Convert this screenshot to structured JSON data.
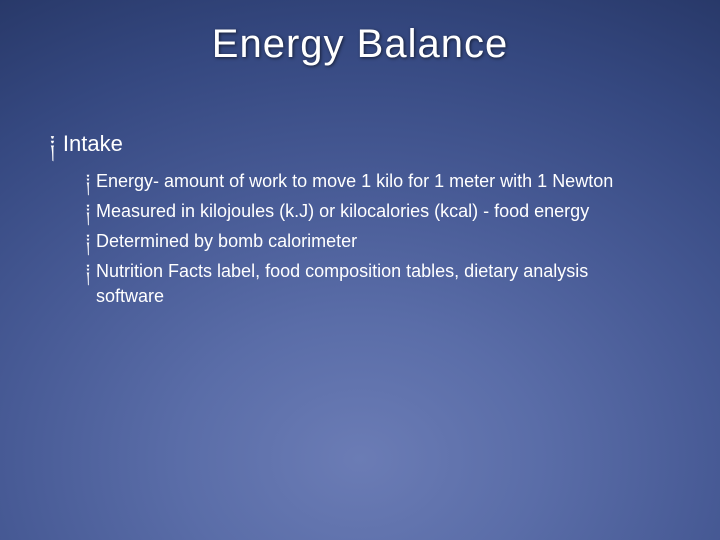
{
  "slide": {
    "title": "Energy Balance",
    "title_color": "#ffffff",
    "title_fontsize": 40,
    "title_fontweight": 300,
    "background_gradient": {
      "type": "radial",
      "center": "50% 85%",
      "stops": [
        {
          "color": "#6b7cb5",
          "at": 0
        },
        {
          "color": "#5a6da8",
          "at": 20
        },
        {
          "color": "#475a95",
          "at": 40
        },
        {
          "color": "#354880",
          "at": 60
        },
        {
          "color": "#263665",
          "at": 80
        },
        {
          "color": "#1a2850",
          "at": 100
        }
      ]
    },
    "bullet_marker": "༐",
    "body_color": "#ffffff",
    "body_fontsize_l1": 22,
    "body_fontsize_l2": 18,
    "bullets": [
      {
        "text": "Intake",
        "children": [
          {
            "text": "Energy- amount of work to move 1 kilo for 1 meter with 1 Newton"
          },
          {
            "text": "Measured in kilojoules (k.J) or kilocalories (kcal) - food energy"
          },
          {
            "text": "Determined by bomb calorimeter"
          },
          {
            "text": "Nutrition Facts label, food composition tables, dietary analysis software"
          }
        ]
      }
    ]
  }
}
